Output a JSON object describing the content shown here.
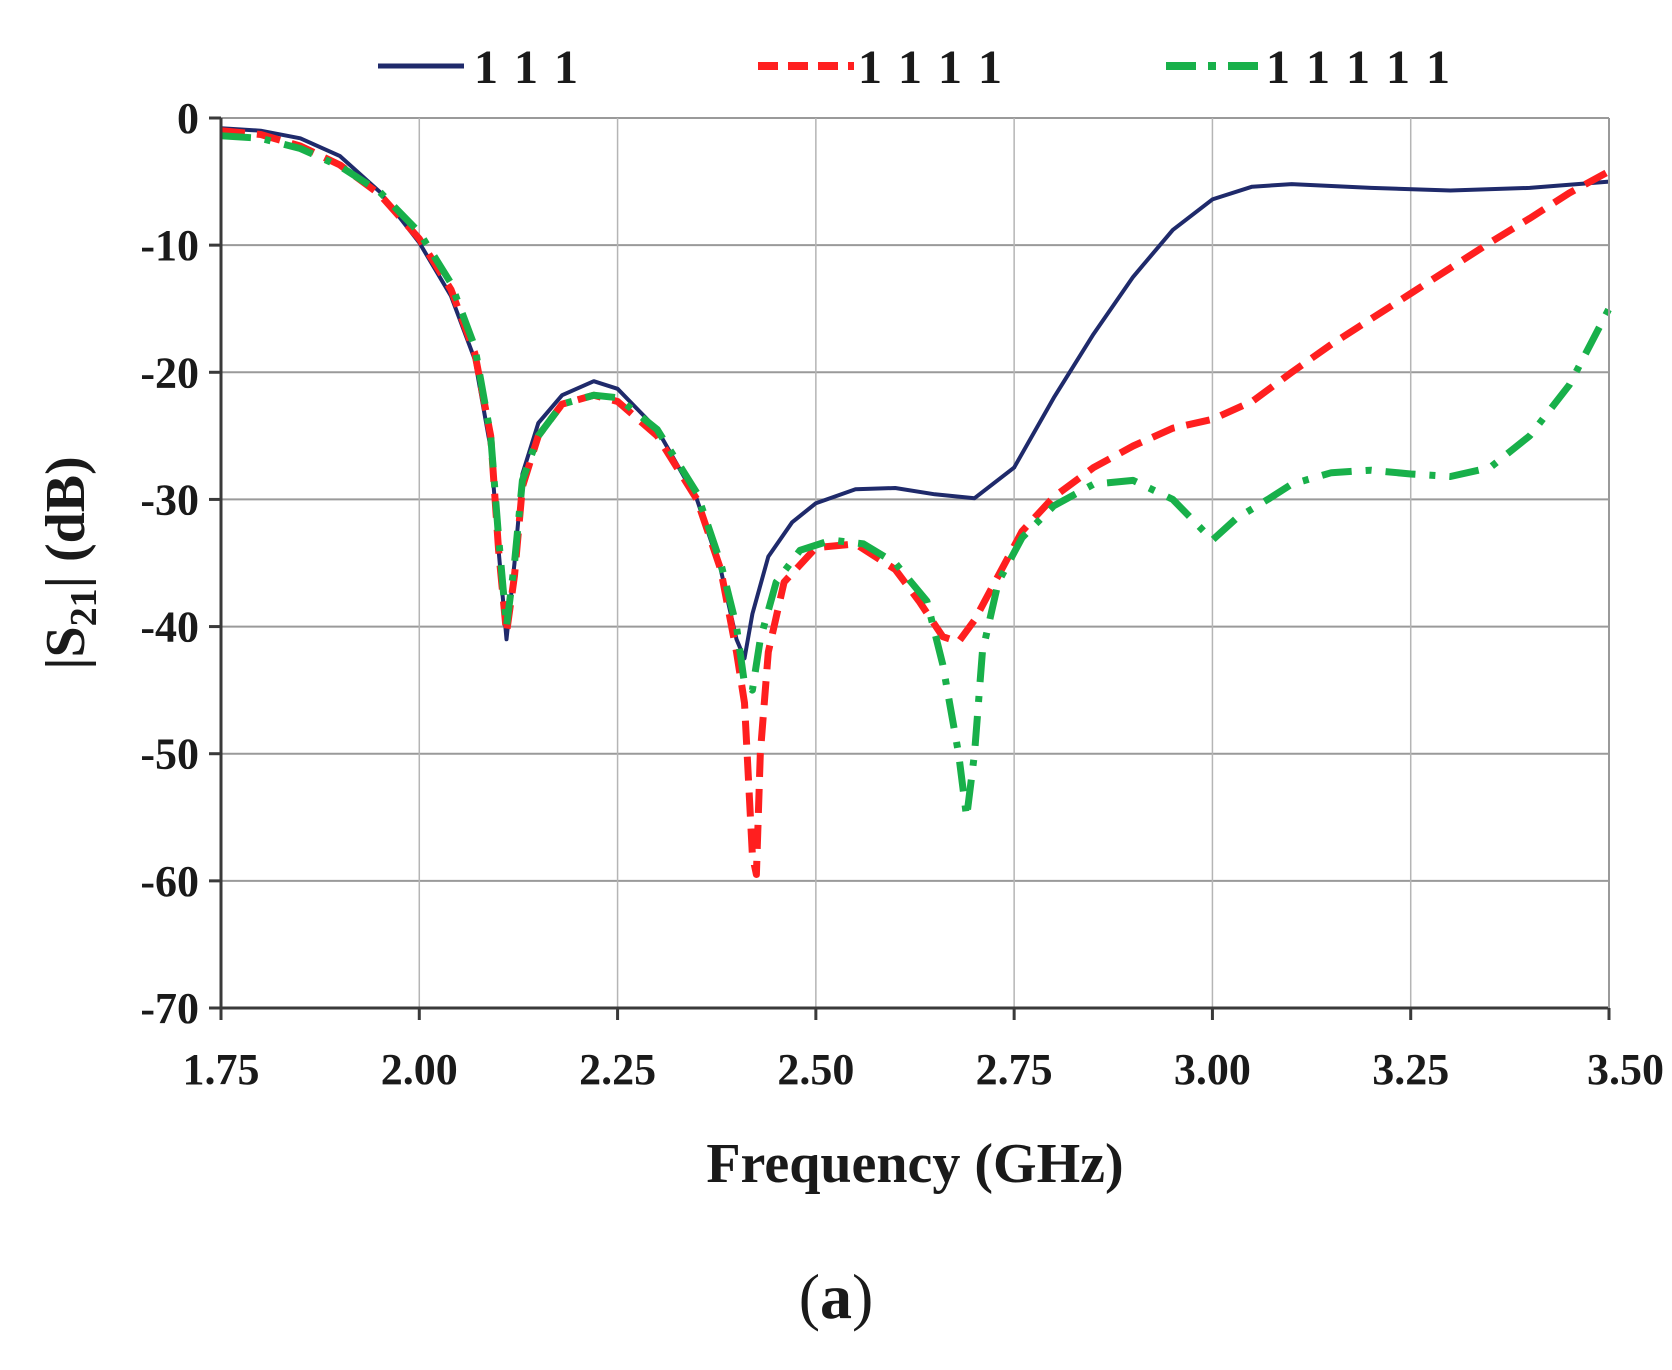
{
  "chart_data": {
    "type": "line",
    "xlabel": "Frequency (GHz)",
    "ylabel_main": "|S",
    "ylabel_sub": "21",
    "ylabel_tail": "| (dB)",
    "panel_label": "a",
    "xlim": [
      1.75,
      3.5
    ],
    "ylim": [
      -70,
      0
    ],
    "xticks": [
      1.75,
      2.0,
      2.25,
      2.5,
      2.75,
      3.0,
      3.25,
      3.5
    ],
    "xtick_labels": [
      "1.75",
      "2.00",
      "2.25",
      "2.50",
      "2.75",
      "3.00",
      "3.25",
      "3.50"
    ],
    "yticks": [
      0,
      -10,
      -20,
      -30,
      -40,
      -50,
      -60,
      -70
    ],
    "ytick_labels": [
      "0",
      "-10",
      "-20",
      "-30",
      "-40",
      "-50",
      "-60",
      "-70"
    ],
    "grid": "horizontal",
    "legend_position": "top",
    "series": [
      {
        "name": "1 1 1",
        "color": "#1f2a6b",
        "style": "solid",
        "points": [
          [
            1.75,
            -0.8
          ],
          [
            1.8,
            -1.0
          ],
          [
            1.85,
            -1.6
          ],
          [
            1.9,
            -3.0
          ],
          [
            1.95,
            -5.8
          ],
          [
            2.0,
            -9.8
          ],
          [
            2.04,
            -14.0
          ],
          [
            2.07,
            -19.0
          ],
          [
            2.09,
            -26.0
          ],
          [
            2.1,
            -34.0
          ],
          [
            2.11,
            -41.0
          ],
          [
            2.12,
            -35.0
          ],
          [
            2.13,
            -28.0
          ],
          [
            2.15,
            -24.0
          ],
          [
            2.18,
            -21.8
          ],
          [
            2.22,
            -20.7
          ],
          [
            2.25,
            -21.3
          ],
          [
            2.3,
            -24.5
          ],
          [
            2.35,
            -30.0
          ],
          [
            2.38,
            -35.5
          ],
          [
            2.4,
            -41.0
          ],
          [
            2.41,
            -42.5
          ],
          [
            2.42,
            -39.0
          ],
          [
            2.44,
            -34.5
          ],
          [
            2.47,
            -31.8
          ],
          [
            2.5,
            -30.3
          ],
          [
            2.55,
            -29.2
          ],
          [
            2.6,
            -29.1
          ],
          [
            2.65,
            -29.6
          ],
          [
            2.7,
            -29.9
          ],
          [
            2.75,
            -27.5
          ],
          [
            2.8,
            -22.0
          ],
          [
            2.85,
            -17.0
          ],
          [
            2.9,
            -12.5
          ],
          [
            2.95,
            -8.8
          ],
          [
            3.0,
            -6.4
          ],
          [
            3.05,
            -5.4
          ],
          [
            3.1,
            -5.2
          ],
          [
            3.2,
            -5.5
          ],
          [
            3.3,
            -5.7
          ],
          [
            3.4,
            -5.5
          ],
          [
            3.5,
            -5.0
          ]
        ]
      },
      {
        "name": "1 1 1 1",
        "color": "#ff1f1f",
        "style": "dashed",
        "points": [
          [
            1.75,
            -1.0
          ],
          [
            1.8,
            -1.3
          ],
          [
            1.85,
            -2.2
          ],
          [
            1.9,
            -3.7
          ],
          [
            1.95,
            -6.0
          ],
          [
            2.0,
            -9.5
          ],
          [
            2.04,
            -13.5
          ],
          [
            2.07,
            -18.5
          ],
          [
            2.09,
            -25.0
          ],
          [
            2.1,
            -34.0
          ],
          [
            2.11,
            -40.5
          ],
          [
            2.12,
            -36.0
          ],
          [
            2.13,
            -29.0
          ],
          [
            2.15,
            -25.0
          ],
          [
            2.18,
            -22.5
          ],
          [
            2.22,
            -21.8
          ],
          [
            2.25,
            -22.3
          ],
          [
            2.3,
            -25.0
          ],
          [
            2.35,
            -30.0
          ],
          [
            2.38,
            -35.5
          ],
          [
            2.4,
            -42.0
          ],
          [
            2.41,
            -46.0
          ],
          [
            2.42,
            -58.0
          ],
          [
            2.425,
            -59.5
          ],
          [
            2.43,
            -50.0
          ],
          [
            2.44,
            -42.0
          ],
          [
            2.46,
            -36.5
          ],
          [
            2.5,
            -33.8
          ],
          [
            2.55,
            -33.5
          ],
          [
            2.6,
            -35.5
          ],
          [
            2.63,
            -38.0
          ],
          [
            2.66,
            -40.8
          ],
          [
            2.68,
            -41.2
          ],
          [
            2.7,
            -39.5
          ],
          [
            2.73,
            -36.0
          ],
          [
            2.76,
            -32.5
          ],
          [
            2.8,
            -29.8
          ],
          [
            2.85,
            -27.5
          ],
          [
            2.9,
            -25.8
          ],
          [
            2.95,
            -24.4
          ],
          [
            3.0,
            -23.7
          ],
          [
            3.05,
            -22.3
          ],
          [
            3.1,
            -20.0
          ],
          [
            3.15,
            -17.8
          ],
          [
            3.2,
            -15.8
          ],
          [
            3.25,
            -13.8
          ],
          [
            3.3,
            -11.8
          ],
          [
            3.35,
            -9.8
          ],
          [
            3.4,
            -7.9
          ],
          [
            3.45,
            -5.9
          ],
          [
            3.5,
            -4.2
          ]
        ]
      },
      {
        "name": "1 1 1 1 1",
        "color": "#18b04a",
        "style": "dash-dot",
        "points": [
          [
            1.75,
            -1.4
          ],
          [
            1.8,
            -1.6
          ],
          [
            1.85,
            -2.4
          ],
          [
            1.9,
            -3.8
          ],
          [
            1.95,
            -5.8
          ],
          [
            2.0,
            -9.0
          ],
          [
            2.04,
            -13.0
          ],
          [
            2.07,
            -18.0
          ],
          [
            2.09,
            -25.0
          ],
          [
            2.1,
            -33.0
          ],
          [
            2.11,
            -40.0
          ],
          [
            2.12,
            -35.0
          ],
          [
            2.13,
            -28.5
          ],
          [
            2.15,
            -25.0
          ],
          [
            2.18,
            -22.5
          ],
          [
            2.22,
            -21.8
          ],
          [
            2.25,
            -22.0
          ],
          [
            2.3,
            -24.5
          ],
          [
            2.35,
            -29.5
          ],
          [
            2.38,
            -35.0
          ],
          [
            2.4,
            -40.0
          ],
          [
            2.41,
            -44.5
          ],
          [
            2.42,
            -45.0
          ],
          [
            2.43,
            -41.0
          ],
          [
            2.45,
            -36.5
          ],
          [
            2.48,
            -34.0
          ],
          [
            2.52,
            -33.2
          ],
          [
            2.56,
            -33.5
          ],
          [
            2.6,
            -35.0
          ],
          [
            2.64,
            -38.0
          ],
          [
            2.66,
            -43.0
          ],
          [
            2.68,
            -50.0
          ],
          [
            2.69,
            -55.0
          ],
          [
            2.7,
            -50.0
          ],
          [
            2.71,
            -42.0
          ],
          [
            2.73,
            -36.5
          ],
          [
            2.76,
            -33.0
          ],
          [
            2.8,
            -30.5
          ],
          [
            2.85,
            -28.8
          ],
          [
            2.9,
            -28.5
          ],
          [
            2.95,
            -30.0
          ],
          [
            3.0,
            -33.2
          ],
          [
            3.03,
            -31.5
          ],
          [
            3.07,
            -30.0
          ],
          [
            3.1,
            -28.8
          ],
          [
            3.15,
            -27.9
          ],
          [
            3.2,
            -27.7
          ],
          [
            3.25,
            -28.0
          ],
          [
            3.3,
            -28.2
          ],
          [
            3.35,
            -27.5
          ],
          [
            3.4,
            -25.0
          ],
          [
            3.45,
            -21.0
          ],
          [
            3.5,
            -15.0
          ]
        ]
      }
    ]
  }
}
